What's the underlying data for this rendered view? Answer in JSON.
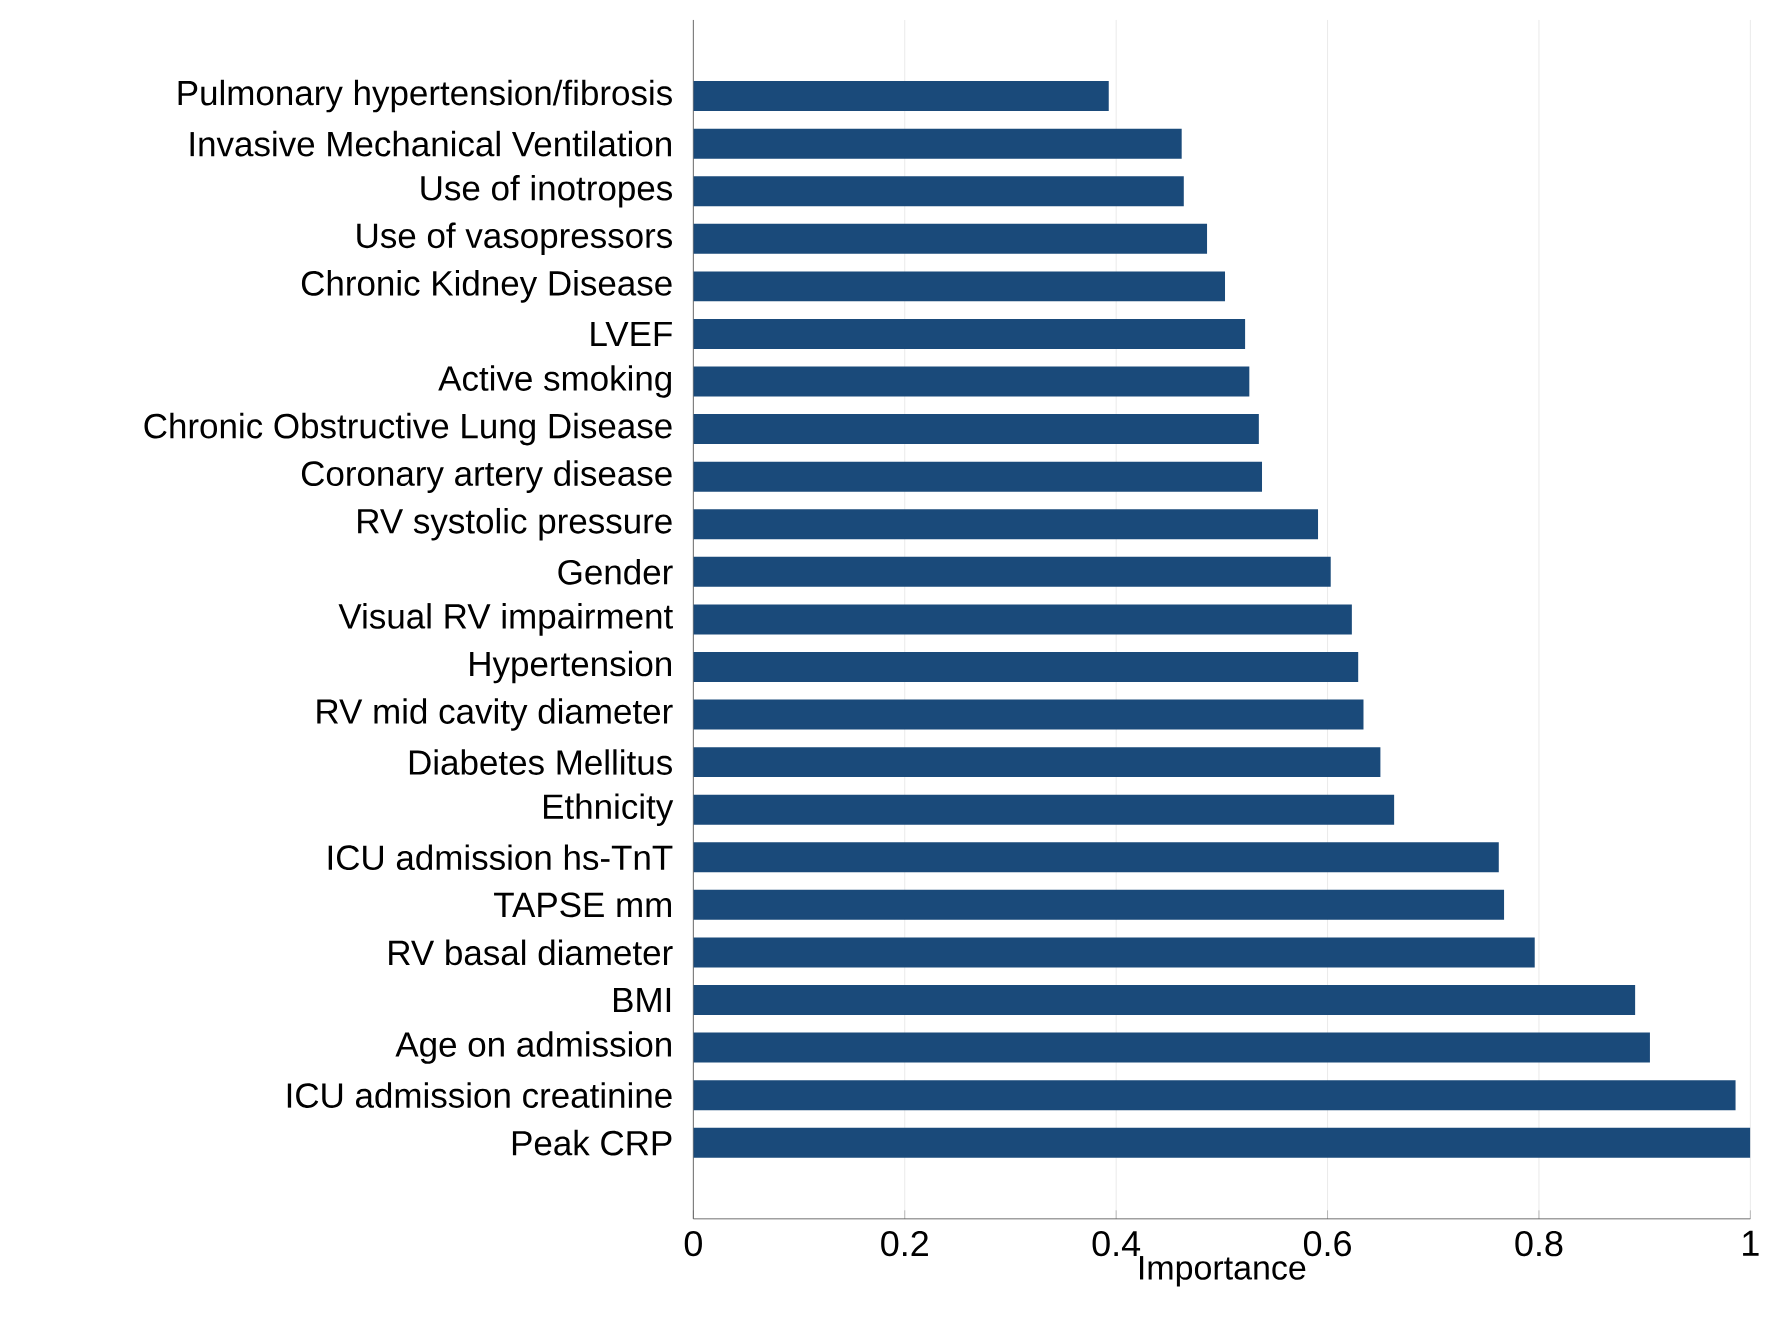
{
  "chart_data": {
    "type": "bar",
    "orientation": "horizontal",
    "xlabel": "Importance",
    "categories": [
      "Pulmonary hypertension/fibrosis",
      "Invasive Mechanical Ventilation",
      "Use of inotropes",
      "Use of vasopressors",
      "Chronic Kidney Disease",
      "LVEF",
      "Active smoking",
      "Chronic Obstructive Lung Disease",
      "Coronary artery disease",
      "RV systolic pressure",
      "Gender",
      "Visual RV impairment",
      "Hypertension",
      "RV mid cavity diameter",
      "Diabetes Mellitus",
      "Ethnicity",
      "ICU admission hs-TnT",
      "TAPSE mm",
      "RV basal diameter",
      "BMI",
      "Age on admission",
      "ICU admission creatinine",
      "Peak CRP"
    ],
    "values": [
      0.393,
      0.462,
      0.464,
      0.486,
      0.503,
      0.522,
      0.526,
      0.535,
      0.538,
      0.591,
      0.603,
      0.623,
      0.629,
      0.634,
      0.65,
      0.663,
      0.762,
      0.767,
      0.796,
      0.891,
      0.905,
      0.986,
      1.0
    ],
    "color": "#1a4a7a",
    "xlim": [
      0,
      1
    ],
    "xticks": [
      0,
      0.2,
      0.4,
      0.6,
      0.8,
      1
    ],
    "grid": "x"
  }
}
